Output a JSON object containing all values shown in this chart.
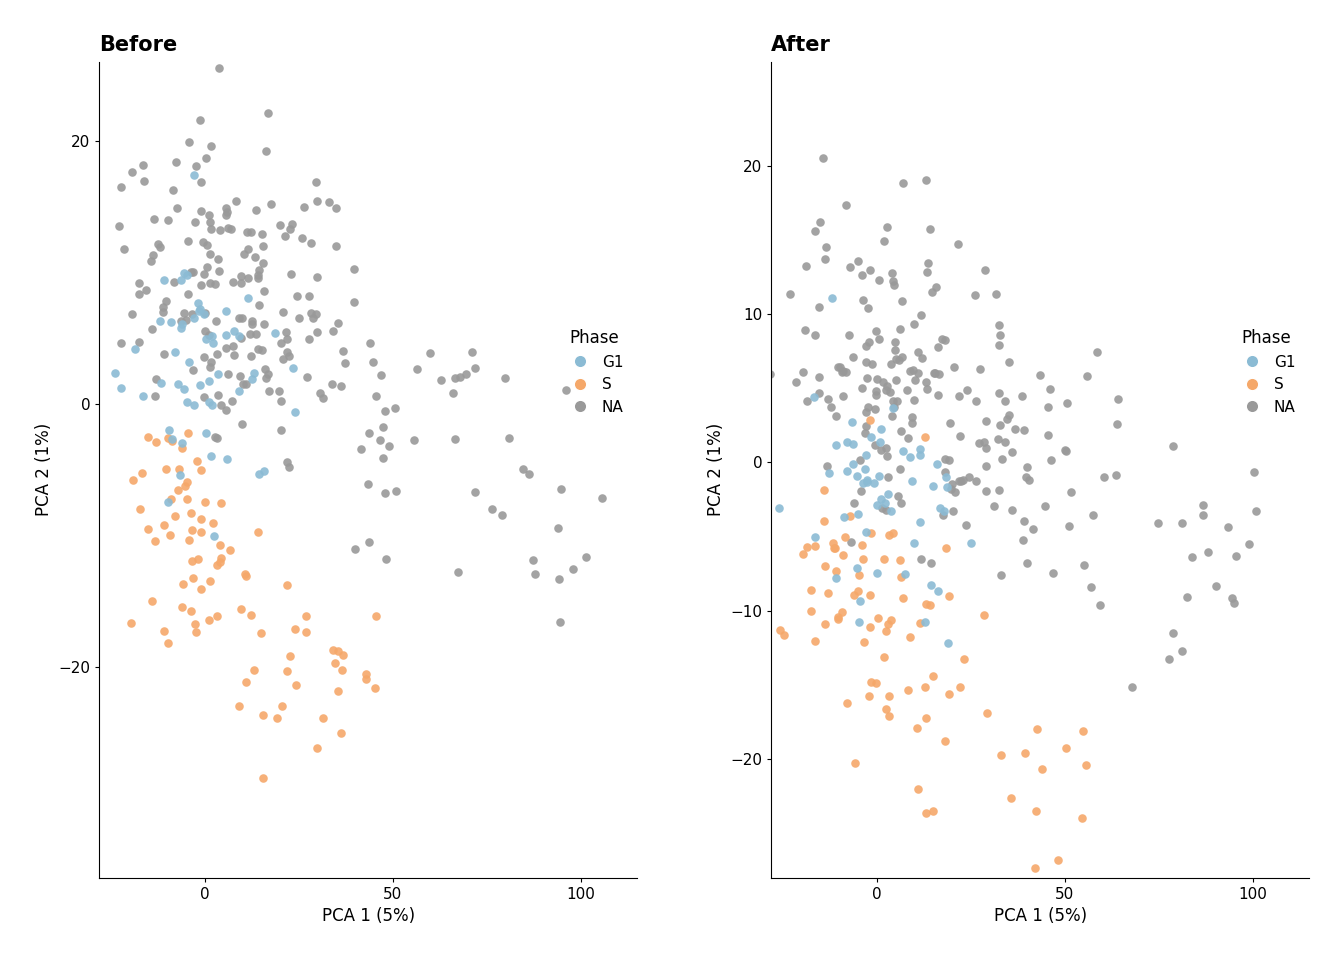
{
  "title_before": "Before",
  "title_after": "After",
  "xlabel": "PCA 1 (5%)",
  "ylabel": "PCA 2 (1%)",
  "colors": {
    "G1": "#8BBBD4",
    "S": "#F5A86A",
    "NA": "#999999"
  },
  "legend_title": "Phase",
  "xlim": [
    -28,
    115
  ],
  "ylim_before": [
    -36,
    26
  ],
  "ylim_after": [
    -28,
    27
  ],
  "xticks": [
    0,
    50,
    100
  ],
  "yticks_before": [
    -20,
    0,
    20
  ],
  "yticks_after": [
    -20,
    -10,
    0,
    10,
    20
  ],
  "point_size": 38,
  "alpha": 0.9,
  "title_fontsize": 15,
  "label_fontsize": 12,
  "tick_fontsize": 11,
  "legend_fontsize": 11,
  "legend_title_fontsize": 12
}
